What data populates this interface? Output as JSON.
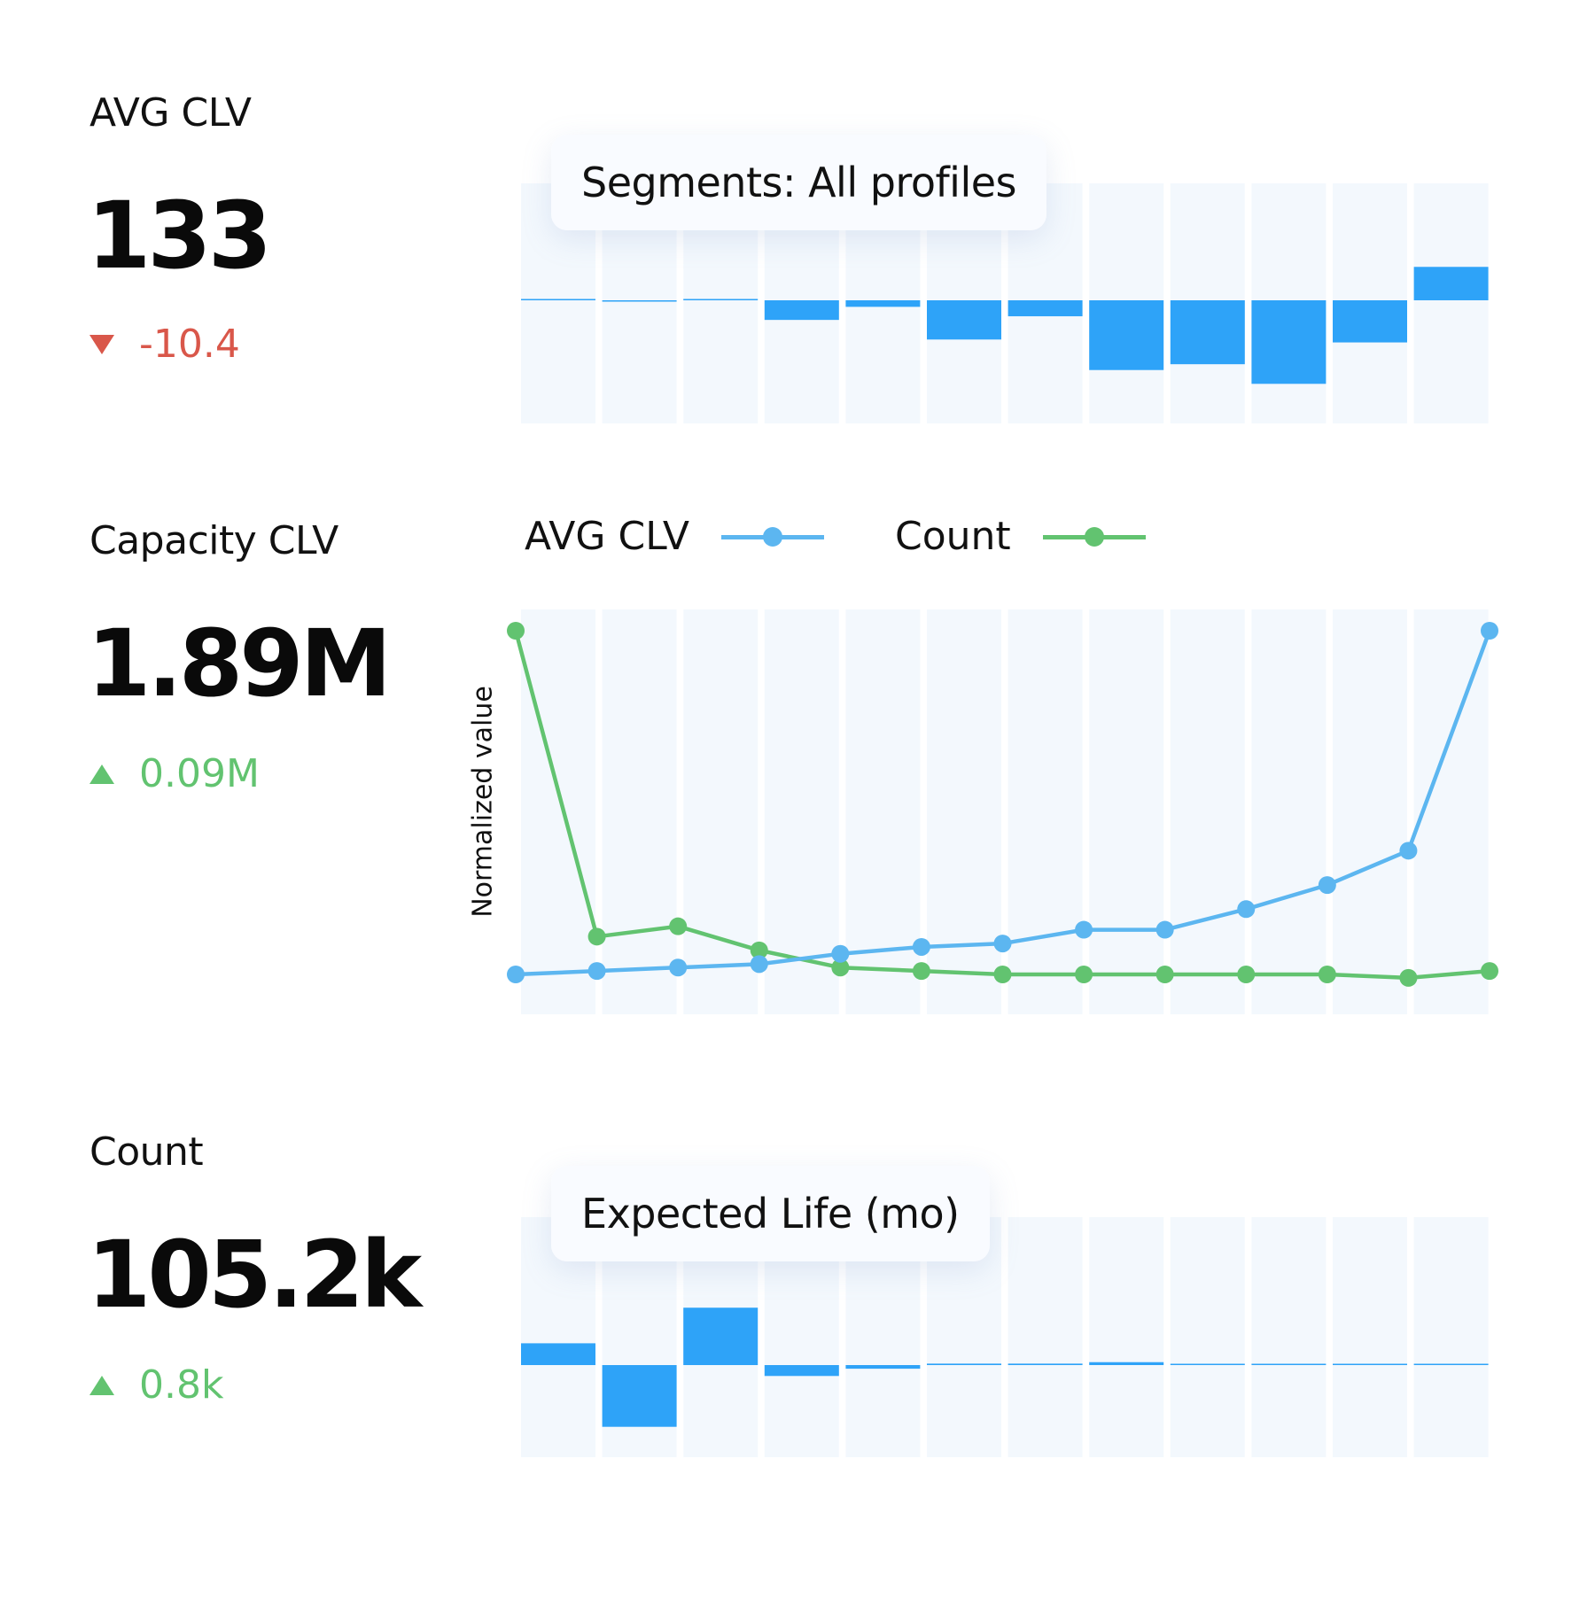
{
  "colors": {
    "accent_blue": "#2ea3f8",
    "line_blue": "#5cb6f0",
    "line_green": "#62c370",
    "down": "#d9574a",
    "up": "#62c370",
    "band": "#f3f8fd"
  },
  "metrics": [
    {
      "label": "AVG CLV",
      "value": "133",
      "delta": "-10.4",
      "direction": "down",
      "delta_icon": "triangle-down-icon"
    },
    {
      "label": "Capacity CLV",
      "value": "1.89M",
      "delta": "0.09M",
      "direction": "up",
      "delta_icon": "triangle-up-icon"
    },
    {
      "label": "Count",
      "value": "105.2k",
      "delta": "0.8k",
      "direction": "up",
      "delta_icon": "triangle-up-icon"
    }
  ],
  "chart_data": [
    {
      "type": "bar",
      "title": "Segments: All profiles",
      "values": [
        0.1,
        -0.1,
        0.1,
        -2.7,
        -0.9,
        -5.4,
        -2.2,
        -9.6,
        -8.8,
        -11.5,
        -5.8,
        4.6
      ],
      "grid": false
    },
    {
      "type": "line",
      "ylabel": "Normalized value",
      "legend": "top-left",
      "series": [
        {
          "name": "AVG CLV",
          "values": [
            0.0,
            0.01,
            0.02,
            0.03,
            0.06,
            0.08,
            0.09,
            0.13,
            0.13,
            0.19,
            0.26,
            0.36,
            1.0
          ]
        },
        {
          "name": "Count",
          "values": [
            1.0,
            0.11,
            0.14,
            0.07,
            0.02,
            0.01,
            0.0,
            0.0,
            0.0,
            0.0,
            0.0,
            -0.01,
            0.01
          ]
        }
      ],
      "grid": false
    },
    {
      "type": "bar",
      "title": "Expected Life (mo)",
      "values": [
        3.0,
        -8.5,
        7.9,
        -1.5,
        -0.5,
        0.2,
        0.2,
        0.4,
        0.1,
        0.1,
        0.1,
        0.1
      ],
      "grid": false
    }
  ]
}
